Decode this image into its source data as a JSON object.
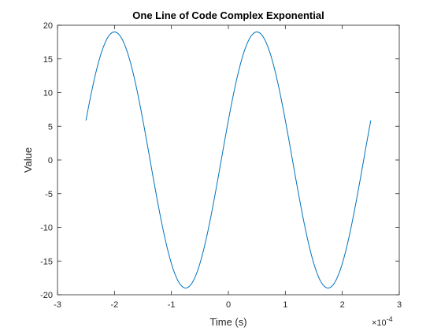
{
  "chart_data": {
    "type": "line",
    "title": "One Line of Code Complex Exponential",
    "xlabel": "Time (s)",
    "ylabel": "Value",
    "x_exponent_label": "×10",
    "x_exponent_power": "-4",
    "xlim": [
      -3,
      3
    ],
    "ylim": [
      -20,
      20
    ],
    "x_unit_scale": 0.0001,
    "xticks": [
      -3,
      -2,
      -1,
      0,
      1,
      2,
      3
    ],
    "xtick_labels": [
      "-3",
      "-2",
      "-1",
      "0",
      "1",
      "2",
      "3"
    ],
    "yticks": [
      -20,
      -15,
      -10,
      -5,
      0,
      5,
      10,
      15,
      20
    ],
    "ytick_labels": [
      "-20",
      "-15",
      "-10",
      "-5",
      "0",
      "5",
      "10",
      "15",
      "20"
    ],
    "grid": false,
    "series": [
      {
        "color": "#0072bd",
        "x_range": [
          -2.5,
          2.5
        ],
        "amplitude": 19,
        "frequency_hz": 4000,
        "phase_peak_at": 0.5
      }
    ]
  }
}
